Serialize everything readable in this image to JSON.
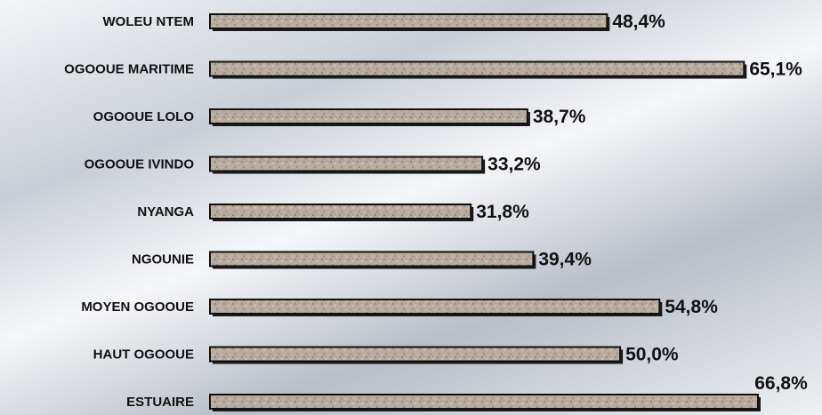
{
  "chart_data": {
    "type": "bar",
    "orientation": "horizontal",
    "title": "",
    "xlabel": "",
    "ylabel": "",
    "categories": [
      "WOLEU NTEM",
      "OGOOUE MARITIME",
      "OGOOUE LOLO",
      "OGOOUE IVINDO",
      "NYANGA",
      "NGOUNIE",
      "MOYEN OGOOUE",
      "HAUT OGOOUE",
      "ESTUAIRE"
    ],
    "values": [
      48.4,
      65.1,
      38.7,
      33.2,
      31.8,
      39.4,
      54.8,
      50.0,
      66.8
    ],
    "value_labels": [
      "48,4%",
      "65,1%",
      "38,7%",
      "33,2%",
      "31,8%",
      "39,4%",
      "54,8%",
      "50,0%",
      "66,8%"
    ],
    "xlim": [
      0,
      66.8
    ],
    "grid": false,
    "legend": "none",
    "colors": {
      "bar_fill": "#b5a89c",
      "bar_border": "#111111",
      "text": "#111111"
    }
  }
}
